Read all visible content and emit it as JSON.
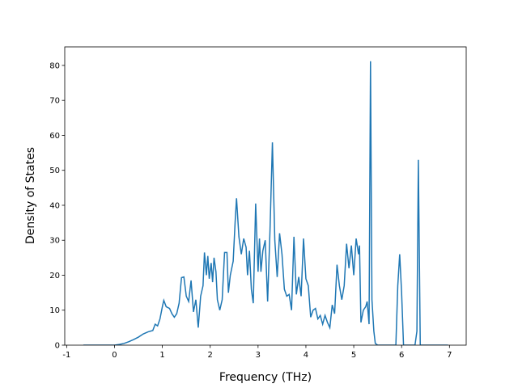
{
  "chart_data": {
    "type": "line",
    "x_label": "Frequency (THz)",
    "y_label": "Density of States",
    "color": "#1f77b4",
    "x": [
      -0.65,
      -0.3,
      0,
      0.1,
      0.2,
      0.3,
      0.4,
      0.5,
      0.6,
      0.7,
      0.8,
      0.85,
      0.9,
      0.95,
      1.0,
      1.03,
      1.08,
      1.15,
      1.2,
      1.25,
      1.3,
      1.35,
      1.4,
      1.45,
      1.5,
      1.55,
      1.6,
      1.65,
      1.7,
      1.75,
      1.8,
      1.85,
      1.88,
      1.92,
      1.95,
      1.98,
      2.02,
      2.05,
      2.08,
      2.12,
      2.15,
      2.2,
      2.25,
      2.3,
      2.35,
      2.38,
      2.42,
      2.48,
      2.52,
      2.55,
      2.6,
      2.65,
      2.7,
      2.75,
      2.78,
      2.82,
      2.86,
      2.9,
      2.95,
      3.0,
      3.03,
      3.06,
      3.1,
      3.15,
      3.2,
      3.25,
      3.3,
      3.35,
      3.4,
      3.45,
      3.5,
      3.55,
      3.6,
      3.65,
      3.7,
      3.75,
      3.8,
      3.85,
      3.9,
      3.95,
      4.0,
      4.05,
      4.1,
      4.15,
      4.2,
      4.25,
      4.3,
      4.35,
      4.4,
      4.45,
      4.5,
      4.55,
      4.6,
      4.65,
      4.7,
      4.75,
      4.8,
      4.85,
      4.9,
      4.95,
      5.0,
      5.05,
      5.1,
      5.12,
      5.15,
      5.2,
      5.25,
      5.28,
      5.32,
      5.35,
      5.38,
      5.42,
      5.45,
      5.5,
      5.88,
      5.92,
      5.96,
      6.0,
      6.04,
      6.28,
      6.32,
      6.35,
      6.39,
      6.97
    ],
    "values": [
      0,
      0,
      0,
      0.2,
      0.5,
      1,
      1.6,
      2.3,
      3.2,
      3.8,
      4.2,
      6,
      5.5,
      7.5,
      11,
      12.8,
      11,
      10.5,
      9,
      8,
      9,
      12,
      19.3,
      19.5,
      14,
      12.5,
      18.5,
      9.5,
      13,
      5,
      14,
      17,
      26.5,
      20,
      25.5,
      19,
      23.5,
      18,
      25,
      21,
      13,
      10,
      13,
      26.5,
      26.5,
      15,
      20,
      24,
      35,
      42,
      31,
      26,
      30.5,
      28,
      20,
      27,
      16,
      12,
      40.5,
      21,
      30.5,
      21,
      27,
      30,
      12.5,
      33,
      58,
      30,
      19.5,
      32,
      26,
      16,
      14,
      14.5,
      10,
      31,
      14.5,
      19.5,
      14,
      30.5,
      19,
      17,
      8,
      10,
      10.5,
      7.5,
      8.5,
      6,
      8.5,
      6.5,
      5,
      11.5,
      9,
      23,
      17,
      13,
      17,
      29,
      22,
      28.5,
      20,
      30.5,
      26,
      28.5,
      6.5,
      10,
      11,
      12.5,
      6,
      81.2,
      13,
      4,
      0.5,
      0,
      0,
      17,
      26,
      15,
      0,
      0,
      4,
      53,
      0,
      0
    ],
    "xlim": [
      -1.04,
      7.35
    ],
    "ylim": [
      0,
      85.3
    ],
    "xticks": [
      -1,
      0,
      1,
      2,
      3,
      4,
      5,
      6,
      7
    ],
    "yticks": [
      0,
      10,
      20,
      30,
      40,
      50,
      60,
      70,
      80
    ]
  }
}
